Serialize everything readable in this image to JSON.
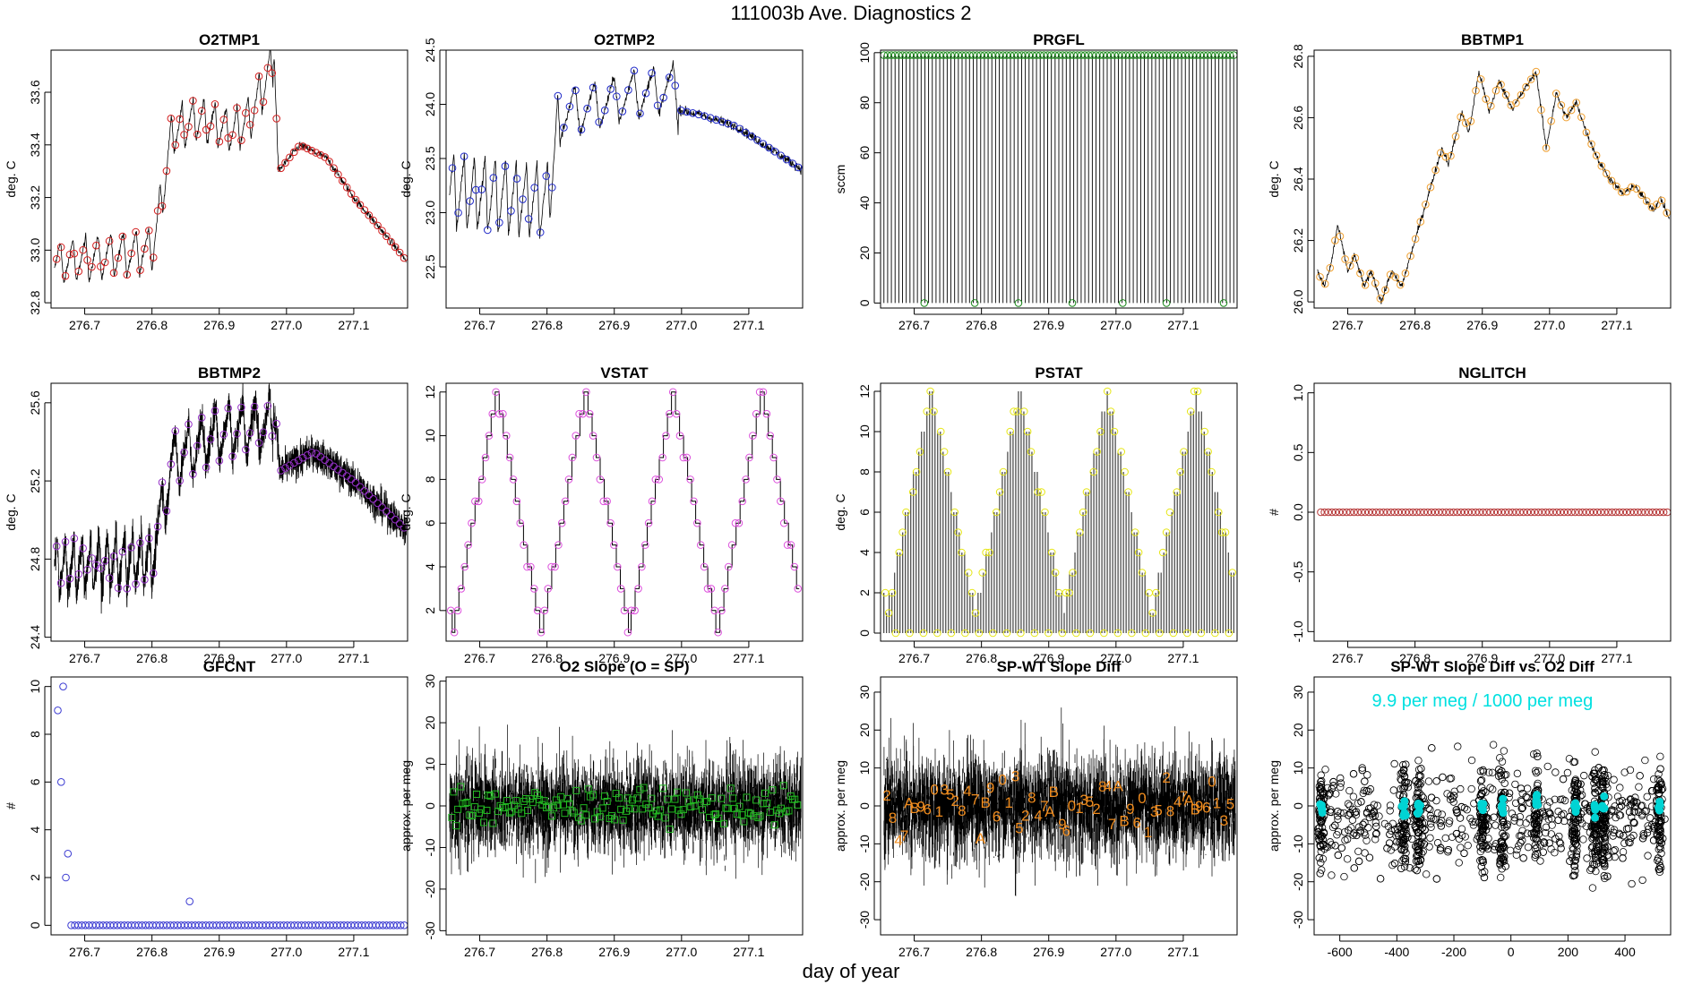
{
  "figure": {
    "title": "111003b   Ave. Diagnostics 2",
    "xlabel": "day of year"
  },
  "chart_data": [
    {
      "id": "p1",
      "type": "line",
      "title": "O2TMP1",
      "ylabel": "deg. C",
      "xlim": [
        276.65,
        277.18
      ],
      "ylim": [
        32.78,
        33.76
      ],
      "yticks": [
        32.8,
        33.0,
        33.2,
        33.4,
        33.6
      ],
      "ytick_labels": [
        "32.8",
        "33.0",
        "33.2",
        "33.4",
        "33.6"
      ],
      "xticks": [
        276.7,
        276.8,
        276.9,
        277.0,
        277.1
      ],
      "xtick_labels": [
        "276.7",
        "276.8",
        "276.9",
        "277.0",
        "277.1"
      ],
      "line_color": "#000000",
      "marker": "circle",
      "marker_color": "#d21e1e",
      "knots": [
        [
          276.655,
          32.95
        ],
        [
          276.8,
          33.0
        ],
        [
          276.815,
          33.2
        ],
        [
          276.83,
          33.45
        ],
        [
          276.87,
          33.5
        ],
        [
          276.92,
          33.45
        ],
        [
          276.945,
          33.5
        ],
        [
          276.982,
          33.72
        ],
        [
          276.988,
          33.3
        ],
        [
          277.02,
          33.4
        ],
        [
          277.06,
          33.35
        ],
        [
          277.1,
          33.2
        ],
        [
          277.14,
          33.08
        ],
        [
          277.178,
          32.96
        ]
      ],
      "osc": [
        [
          276.65,
          276.8,
          8,
          0.17
        ],
        [
          276.8,
          276.98,
          11,
          0.17
        ]
      ],
      "noise": 0.01,
      "density": 1,
      "marker_count": 80
    },
    {
      "id": "p2",
      "type": "line",
      "title": "O2TMP2",
      "ylabel": "deg. C",
      "xlim": [
        276.65,
        277.18
      ],
      "ylim": [
        22.12,
        24.5
      ],
      "yticks": [
        22.5,
        23.0,
        23.5,
        24.0,
        24.5
      ],
      "ytick_labels": [
        "22.5",
        "23.0",
        "23.5",
        "24.0",
        "24.5"
      ],
      "xticks": [
        276.7,
        276.8,
        276.9,
        277.0,
        277.1
      ],
      "xtick_labels": [
        "276.7",
        "276.8",
        "276.9",
        "277.0",
        "277.1"
      ],
      "line_color": "#000000",
      "marker": "circle",
      "marker_color": "#1e28c8",
      "knots": [
        [
          276.655,
          23.2
        ],
        [
          276.8,
          23.1
        ],
        [
          276.82,
          23.9
        ],
        [
          276.88,
          24.0
        ],
        [
          276.93,
          24.1
        ],
        [
          276.99,
          24.15
        ],
        [
          276.995,
          23.95
        ],
        [
          277.03,
          23.9
        ],
        [
          277.08,
          23.8
        ],
        [
          277.13,
          23.6
        ],
        [
          277.178,
          23.4
        ]
      ],
      "osc": [
        [
          276.65,
          276.82,
          11,
          0.7
        ],
        [
          276.82,
          276.995,
          6,
          0.45
        ]
      ],
      "noise": 0.03,
      "density": 1,
      "marker_count": 60
    },
    {
      "id": "p3",
      "type": "spikes",
      "title": "PRGFL",
      "ylabel": "sccm",
      "xlim": [
        276.65,
        277.18
      ],
      "ylim": [
        -2,
        101
      ],
      "yticks": [
        0,
        20,
        40,
        60,
        80,
        100
      ],
      "ytick_labels": [
        "0",
        "20",
        "40",
        "60",
        "80",
        "100"
      ],
      "xticks": [
        276.7,
        276.8,
        276.9,
        277.0,
        277.1
      ],
      "xtick_labels": [
        "276.7",
        "276.8",
        "276.9",
        "277.0",
        "277.1"
      ],
      "line_color": "#000000",
      "marker": "circle",
      "marker_color": "#1e8c1e",
      "spike_value": 99,
      "spike_count": 95,
      "zero_markers": [
        276.715,
        276.79,
        276.855,
        276.935,
        277.01,
        277.075,
        277.16
      ],
      "marker_count": 95
    },
    {
      "id": "p4",
      "type": "line",
      "title": "BBTMP1",
      "ylabel": "deg. C",
      "xlim": [
        276.65,
        277.18
      ],
      "ylim": [
        25.98,
        26.82
      ],
      "yticks": [
        26.0,
        26.2,
        26.4,
        26.6,
        26.8
      ],
      "ytick_labels": [
        "26.0",
        "26.2",
        "26.4",
        "26.6",
        "26.8"
      ],
      "xticks": [
        276.7,
        276.8,
        276.9,
        277.0,
        277.1
      ],
      "xtick_labels": [
        "276.7",
        "276.8",
        "276.9",
        "277.0",
        "277.1"
      ],
      "line_color": "#000000",
      "marker": "circle",
      "marker_color": "#f0a030",
      "knots": [
        [
          276.655,
          26.1
        ],
        [
          276.665,
          26.05
        ],
        [
          276.675,
          26.12
        ],
        [
          276.685,
          26.25
        ],
        [
          276.7,
          26.1
        ],
        [
          276.71,
          26.15
        ],
        [
          276.725,
          26.05
        ],
        [
          276.735,
          26.1
        ],
        [
          276.75,
          26.0
        ],
        [
          276.765,
          26.1
        ],
        [
          276.78,
          26.05
        ],
        [
          276.8,
          26.2
        ],
        [
          276.82,
          26.35
        ],
        [
          276.84,
          26.5
        ],
        [
          276.85,
          26.45
        ],
        [
          276.87,
          26.62
        ],
        [
          276.88,
          26.55
        ],
        [
          276.895,
          26.75
        ],
        [
          276.91,
          26.62
        ],
        [
          276.925,
          26.72
        ],
        [
          276.945,
          26.63
        ],
        [
          276.965,
          26.7
        ],
        [
          276.98,
          26.75
        ],
        [
          276.995,
          26.5
        ],
        [
          277.01,
          26.68
        ],
        [
          277.025,
          26.6
        ],
        [
          277.04,
          26.65
        ],
        [
          277.055,
          26.55
        ],
        [
          277.075,
          26.45
        ],
        [
          277.09,
          26.4
        ],
        [
          277.11,
          26.35
        ],
        [
          277.125,
          26.38
        ],
        [
          277.14,
          26.34
        ],
        [
          277.155,
          26.3
        ],
        [
          277.165,
          26.34
        ],
        [
          277.178,
          26.27
        ]
      ],
      "noise": 0.008,
      "density": 1,
      "marker_count": 70
    },
    {
      "id": "p5",
      "type": "line",
      "title": "BBTMP2",
      "ylabel": "deg. C",
      "xlim": [
        276.65,
        277.18
      ],
      "ylim": [
        24.38,
        25.7
      ],
      "yticks": [
        24.4,
        24.8,
        25.2,
        25.6
      ],
      "ytick_labels": [
        "24.4",
        "24.8",
        "25.2",
        "25.6"
      ],
      "xticks": [
        276.7,
        276.8,
        276.9,
        277.0,
        277.1
      ],
      "xtick_labels": [
        "276.7",
        "276.8",
        "276.9",
        "277.0",
        "277.1"
      ],
      "line_color": "#000000",
      "marker": "circle",
      "marker_color": "#9632c8",
      "knots": [
        [
          276.655,
          24.75
        ],
        [
          276.8,
          24.8
        ],
        [
          276.83,
          25.3
        ],
        [
          276.9,
          25.45
        ],
        [
          276.985,
          25.5
        ],
        [
          276.99,
          25.25
        ],
        [
          277.04,
          25.35
        ],
        [
          277.1,
          25.2
        ],
        [
          277.178,
          24.95
        ]
      ],
      "osc": [
        [
          276.65,
          276.8,
          12,
          0.3
        ],
        [
          276.8,
          276.98,
          9,
          0.3
        ]
      ],
      "noise": 0.06,
      "density": 3,
      "marker_count": 80
    },
    {
      "id": "p6",
      "type": "triangle",
      "title": "VSTAT",
      "ylabel": "deg. C",
      "xlim": [
        276.65,
        277.18
      ],
      "ylim": [
        0.6,
        12.4
      ],
      "yticks": [
        2,
        4,
        6,
        8,
        10,
        12
      ],
      "ytick_labels": [
        "2",
        "4",
        "6",
        "8",
        "10",
        "12"
      ],
      "xticks": [
        276.7,
        276.8,
        276.9,
        277.0,
        277.1
      ],
      "xtick_labels": [
        "276.7",
        "276.8",
        "276.9",
        "277.0",
        "277.1"
      ],
      "line_color": "#000000",
      "marker": "circle",
      "marker_color": "#dc50dc",
      "cycle_days": 0.131,
      "start": 276.66,
      "min": 1,
      "max": 12,
      "spikes": false
    },
    {
      "id": "p7",
      "type": "triangle",
      "title": "PSTAT",
      "ylabel": "deg. C",
      "xlim": [
        276.65,
        277.18
      ],
      "ylim": [
        -0.4,
        12.4
      ],
      "yticks": [
        0,
        2,
        4,
        6,
        8,
        10,
        12
      ],
      "ytick_labels": [
        "0",
        "2",
        "4",
        "6",
        "8",
        "10",
        "12"
      ],
      "xticks": [
        276.7,
        276.8,
        276.9,
        277.0,
        277.1
      ],
      "xtick_labels": [
        "276.7",
        "276.8",
        "276.9",
        "277.0",
        "277.1"
      ],
      "line_color": "#000000",
      "marker": "circle",
      "marker_color": "#e6e614",
      "cycle_days": 0.131,
      "start": 276.66,
      "min": 1,
      "max": 12,
      "spikes": true
    },
    {
      "id": "p8",
      "type": "constant",
      "title": "NGLITCH",
      "ylabel": "#",
      "xlim": [
        276.65,
        277.18
      ],
      "ylim": [
        -1.08,
        1.08
      ],
      "yticks": [
        -1.0,
        -0.5,
        0.0,
        0.5,
        1.0
      ],
      "ytick_labels": [
        "-1.0",
        "-0.5",
        "0.0",
        "0.5",
        "1.0"
      ],
      "xticks": [
        276.7,
        276.8,
        276.9,
        277.0,
        277.1
      ],
      "xtick_labels": [
        "276.7",
        "276.8",
        "276.9",
        "277.0",
        "277.1"
      ],
      "marker": "circle",
      "marker_color": "#b43232",
      "value": 0,
      "marker_count": 95
    },
    {
      "id": "p9",
      "type": "scatter",
      "title": "GFCNT",
      "ylabel": "#",
      "xlim": [
        276.65,
        277.18
      ],
      "ylim": [
        -0.4,
        10.4
      ],
      "yticks": [
        0,
        2,
        4,
        6,
        8,
        10
      ],
      "ytick_labels": [
        "0",
        "2",
        "4",
        "6",
        "8",
        "10"
      ],
      "xticks": [
        276.7,
        276.8,
        276.9,
        277.0,
        277.1
      ],
      "xtick_labels": [
        "276.7",
        "276.8",
        "276.9",
        "277.0",
        "277.1"
      ],
      "marker": "circle",
      "marker_color": "#3c3cd2",
      "points": [
        [
          276.66,
          9
        ],
        [
          276.665,
          6
        ],
        [
          276.668,
          10
        ],
        [
          276.672,
          2
        ],
        [
          276.675,
          3
        ],
        [
          276.856,
          1
        ]
      ],
      "baseline_from": 276.68,
      "baseline_count": 95
    },
    {
      "id": "p10",
      "type": "noise",
      "title": "O2 Slope (O = SP)",
      "ylabel": "approx. per meg",
      "xlim": [
        276.65,
        277.18
      ],
      "ylim": [
        -31,
        31
      ],
      "yticks": [
        -30,
        -20,
        -10,
        0,
        10,
        20,
        30
      ],
      "ytick_labels": [
        "-30",
        "-20",
        "-10",
        "0",
        "10",
        "20",
        "30"
      ],
      "xticks": [
        276.7,
        276.8,
        276.9,
        277.0,
        277.1
      ],
      "xtick_labels": [
        "276.7",
        "276.8",
        "276.9",
        "277.0",
        "277.1"
      ],
      "center": 0,
      "amp": 8,
      "marker": "square",
      "marker_color": "#22b822",
      "marker_spread": 3,
      "marker_count": 150
    },
    {
      "id": "p11",
      "type": "noise",
      "title": "SP-WT Slope Diff",
      "ylabel": "approx. per meg",
      "xlim": [
        276.65,
        277.18
      ],
      "ylim": [
        -34,
        34
      ],
      "yticks": [
        -30,
        -20,
        -10,
        0,
        10,
        20,
        30
      ],
      "ytick_labels": [
        "-30",
        "-20",
        "-10",
        "0",
        "10",
        "20",
        "30"
      ],
      "xticks": [
        276.7,
        276.8,
        276.9,
        277.0,
        277.1
      ],
      "xtick_labels": [
        "276.7",
        "276.8",
        "276.9",
        "277.0",
        "277.1"
      ],
      "center": 0,
      "amp": 10,
      "marker": "text",
      "marker_color": "#f08c1e",
      "marker_labels": [
        "2",
        "8",
        "4",
        "7",
        "A",
        "B",
        "9",
        "6",
        "0",
        "1",
        "3",
        "5"
      ],
      "marker_spread": 5,
      "marker_count": 60
    },
    {
      "id": "p12",
      "type": "cluster",
      "title": "SP-WT Slope Diff vs. O2 Diff",
      "ylabel": "approx. per meg",
      "xlim": [
        -690,
        560
      ],
      "ylim": [
        -34,
        34
      ],
      "yticks": [
        -30,
        -20,
        -10,
        0,
        10,
        20,
        30
      ],
      "ytick_labels": [
        "-30",
        "-20",
        "-10",
        "0",
        "10",
        "20",
        "30"
      ],
      "xticks": [
        -600,
        -400,
        -200,
        0,
        200,
        400
      ],
      "xtick_labels": [
        "-600",
        "-400",
        "-200",
        "0",
        "200",
        "400"
      ],
      "annotation": "9.9 per meg / 1000 per meg",
      "annotation_color": "#00e0e0",
      "clusters": [
        -665,
        -375,
        -325,
        -100,
        -30,
        90,
        225,
        295,
        325,
        520
      ],
      "marker_color": "#00d4d4",
      "points_count": 1600
    }
  ]
}
